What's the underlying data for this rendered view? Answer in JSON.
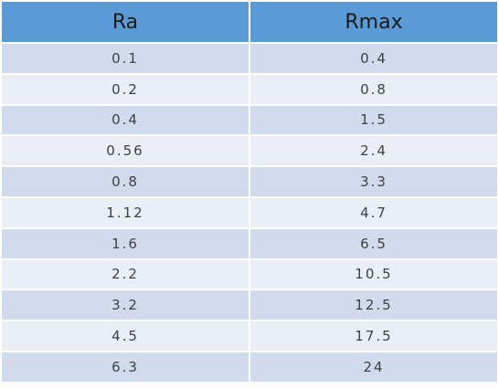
{
  "table": {
    "header": [
      "Ra",
      "Rmax"
    ],
    "rows": [
      [
        0.1,
        0.4
      ],
      [
        0.2,
        0.8
      ],
      [
        0.4,
        1.5
      ],
      [
        0.56,
        2.4
      ],
      [
        0.8,
        3.3
      ],
      [
        1.12,
        4.7
      ],
      [
        1.6,
        6.5
      ],
      [
        2.2,
        10.5
      ],
      [
        3.2,
        12.5
      ],
      [
        4.5,
        17.5
      ],
      [
        6.3,
        24
      ]
    ]
  }
}
